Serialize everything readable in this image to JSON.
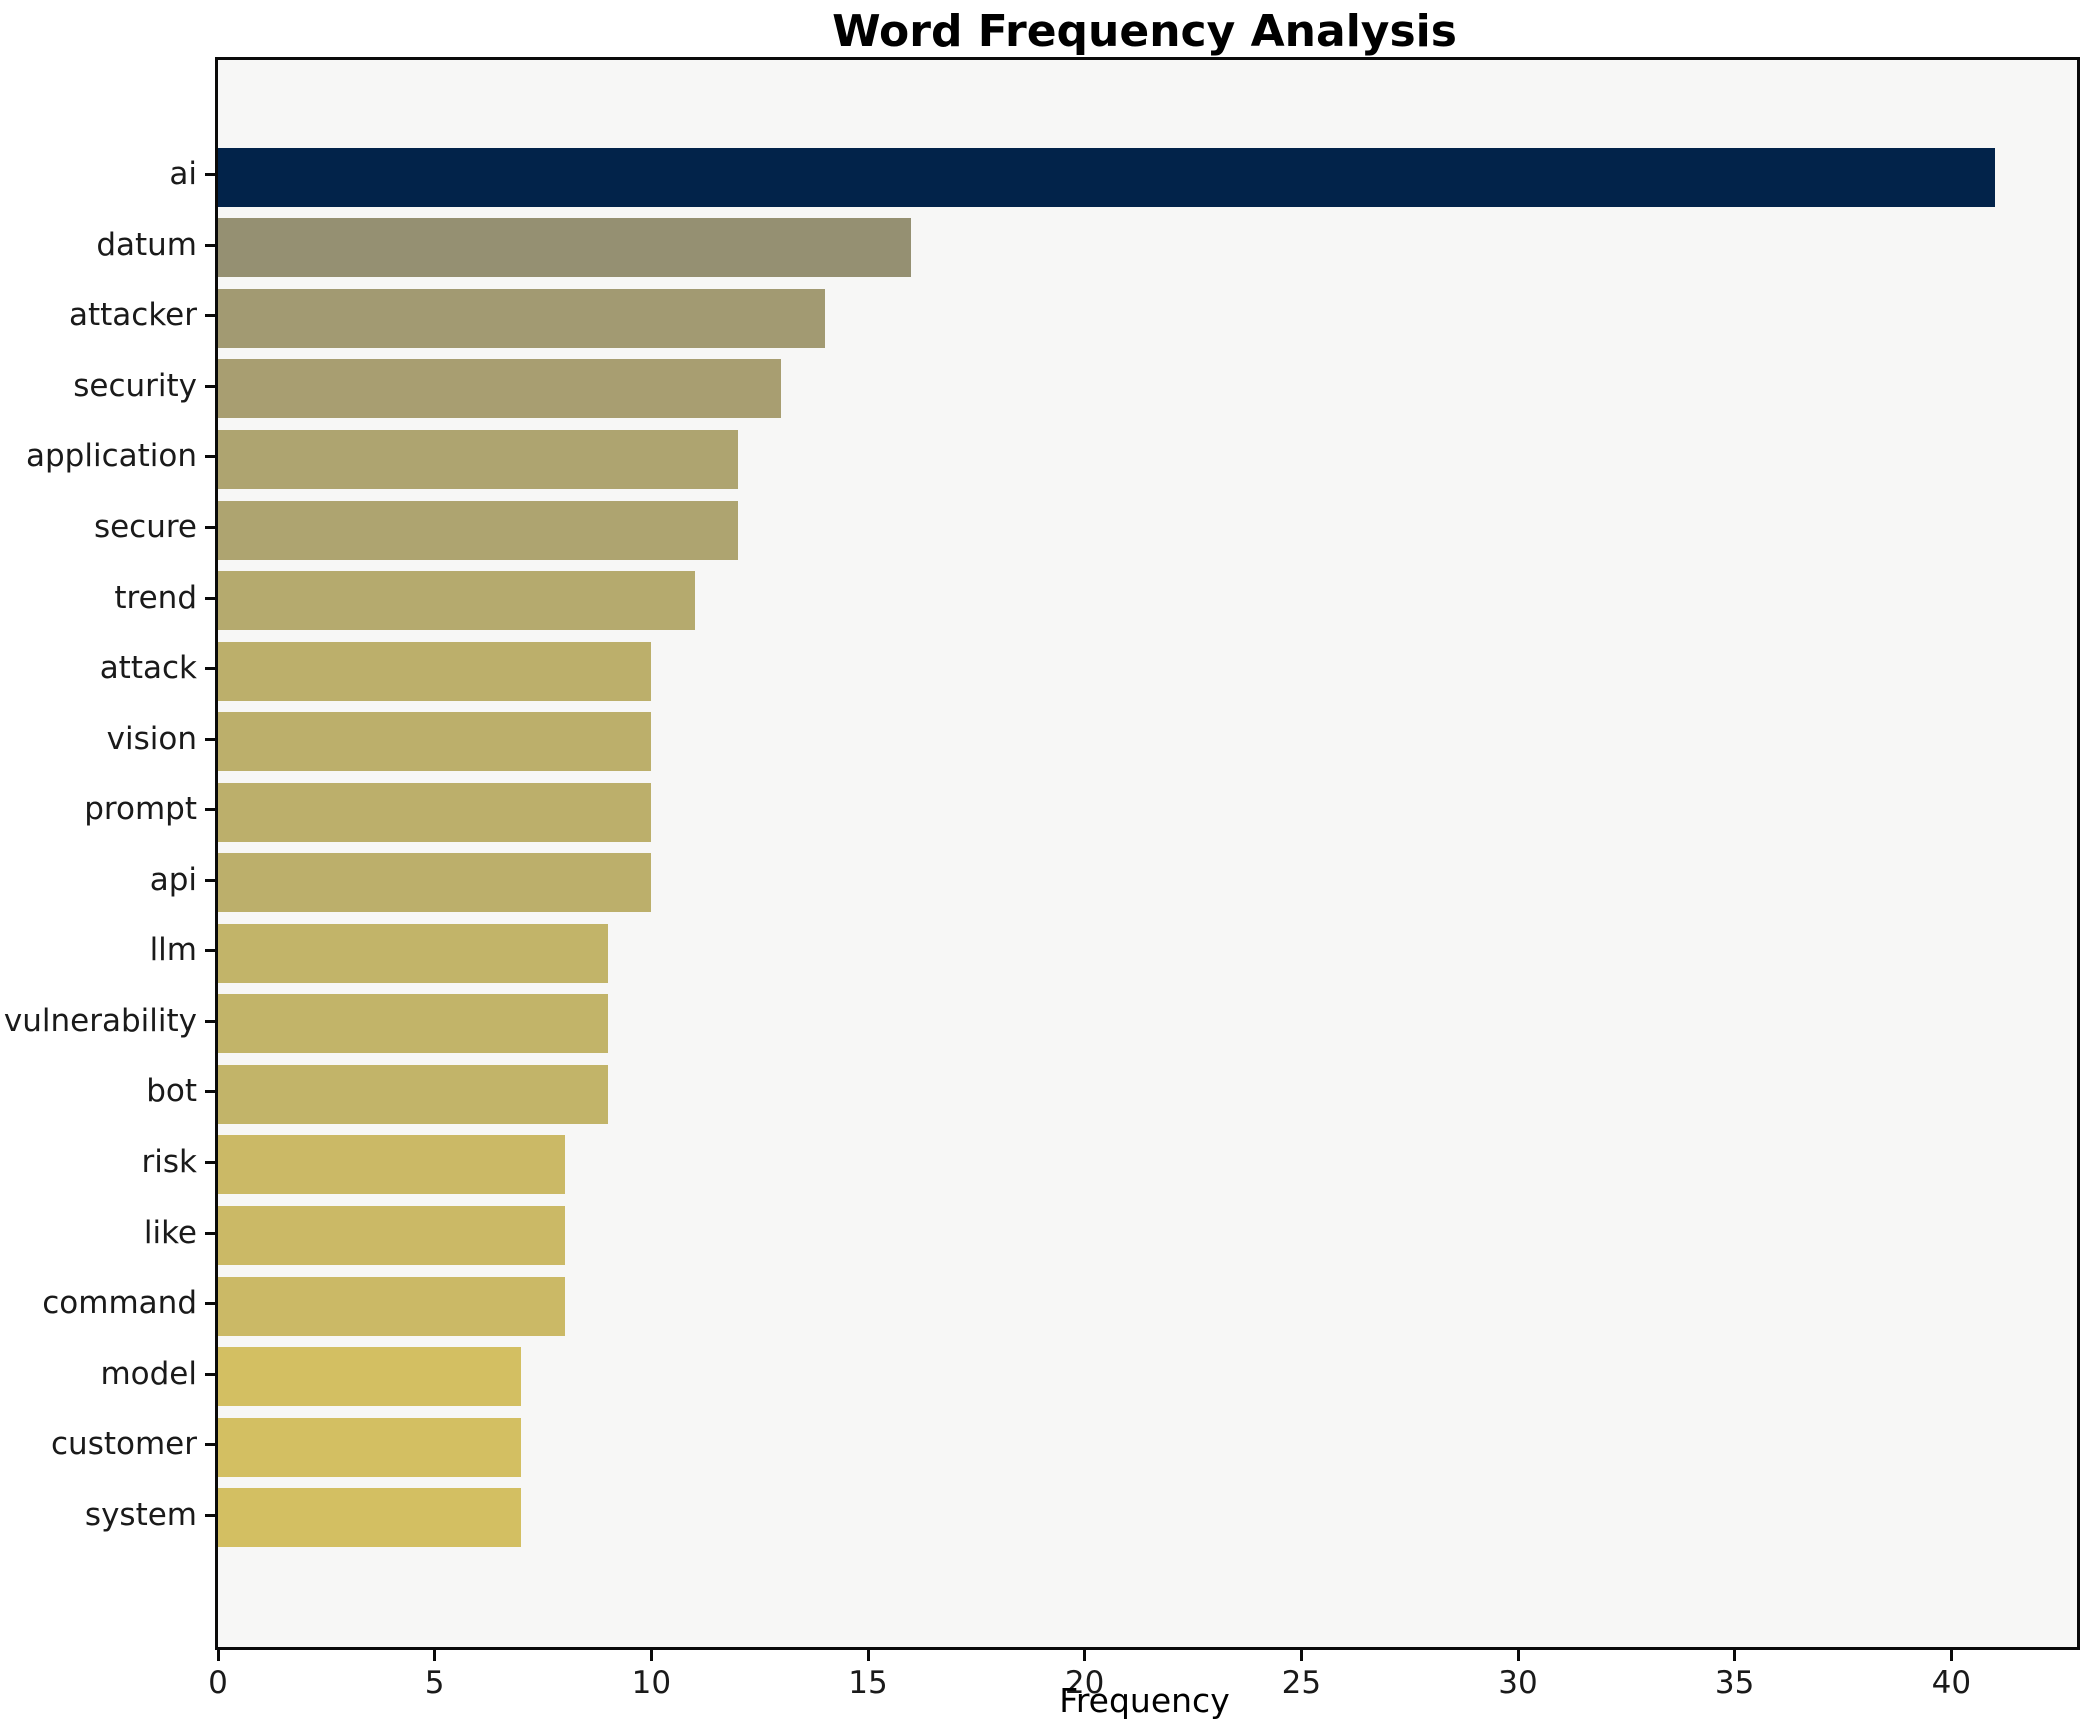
{
  "chart_data": {
    "type": "bar",
    "orientation": "horizontal",
    "title": "Word Frequency Analysis",
    "xlabel": "Frequency",
    "ylabel": "",
    "categories": [
      "ai",
      "datum",
      "attacker",
      "security",
      "application",
      "secure",
      "trend",
      "attack",
      "vision",
      "prompt",
      "api",
      "llm",
      "vulnerability",
      "bot",
      "risk",
      "like",
      "command",
      "model",
      "customer",
      "system"
    ],
    "values": [
      41,
      16,
      14,
      13,
      12,
      12,
      11,
      10,
      10,
      10,
      10,
      9,
      9,
      9,
      8,
      8,
      8,
      7,
      7,
      7
    ],
    "bar_colors": [
      "#02234a",
      "#959072",
      "#a29a72",
      "#a89e71",
      "#aea470",
      "#aea470",
      "#b5aa6e",
      "#bcaf6b",
      "#bcaf6b",
      "#bcaf6b",
      "#bcaf6b",
      "#c2b469",
      "#c2b469",
      "#c2b469",
      "#cbb966",
      "#cbb966",
      "#cbb966",
      "#d3bf62",
      "#d3bf62",
      "#d3bf62"
    ],
    "xlim": [
      0,
      42.9
    ],
    "xticks": [
      0,
      5,
      10,
      15,
      20,
      25,
      30,
      35,
      40
    ],
    "grid": false,
    "legend": null,
    "colors": {
      "highlight_bar": "#02234a",
      "plot_background": "#f7f7f6",
      "figure_background": "#ffffff",
      "axis": "#0a0a0a",
      "text": "#1a1a1a"
    }
  }
}
